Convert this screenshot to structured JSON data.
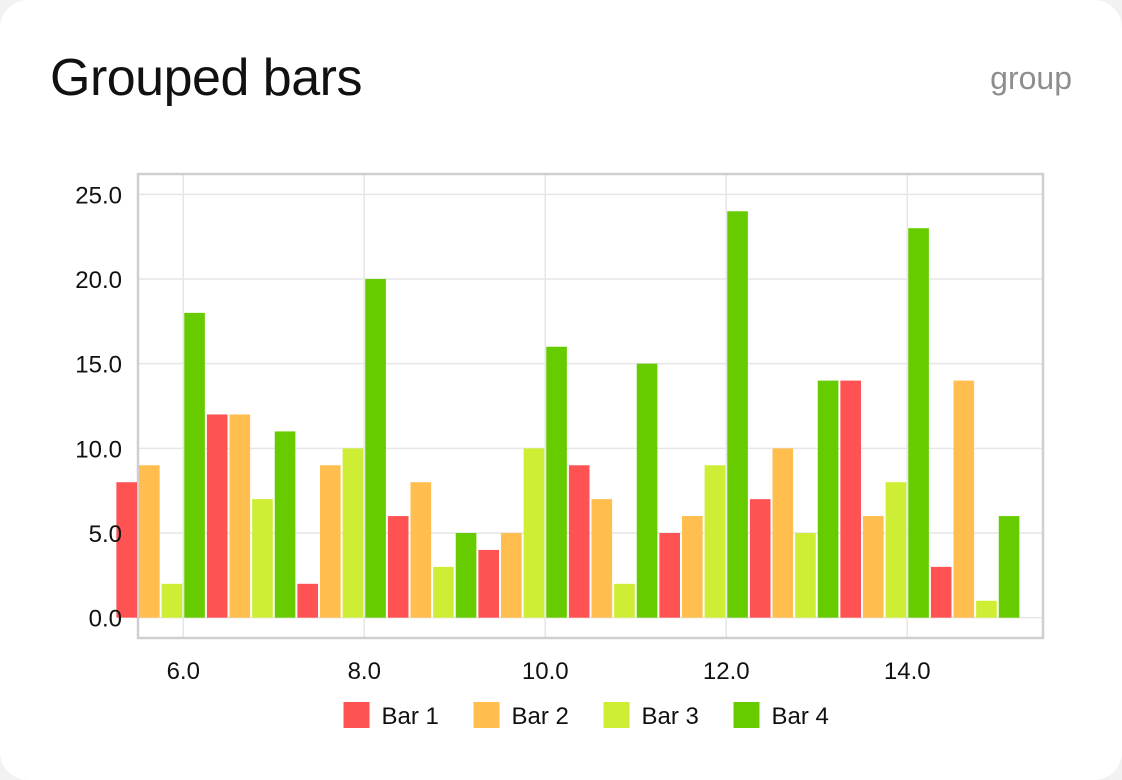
{
  "header": {
    "title": "Grouped bars",
    "tag": "group"
  },
  "chart_data": {
    "type": "bar",
    "mode": "grouped",
    "x": [
      5.75,
      6.75,
      7.75,
      8.75,
      9.75,
      10.75,
      11.75,
      12.75,
      13.75,
      14.75
    ],
    "series": [
      {
        "name": "Bar 1",
        "color": "#ff5252",
        "values": [
          8,
          12,
          2,
          6,
          4,
          9,
          5,
          7,
          14,
          3
        ]
      },
      {
        "name": "Bar 2",
        "color": "#ffbe4d",
        "values": [
          9,
          12,
          9,
          8,
          5,
          7,
          6,
          10,
          6,
          14
        ]
      },
      {
        "name": "Bar 3",
        "color": "#cdee34",
        "values": [
          2,
          7,
          10,
          3,
          10,
          2,
          9,
          5,
          8,
          1
        ]
      },
      {
        "name": "Bar 4",
        "color": "#66cc00",
        "values": [
          18,
          11,
          20,
          5,
          16,
          15,
          24,
          14,
          23,
          6
        ]
      }
    ],
    "xticks": [
      "6.0",
      "8.0",
      "10.0",
      "12.0",
      "14.0"
    ],
    "yticks": [
      "0.0",
      "5.0",
      "10.0",
      "15.0",
      "20.0",
      "25.0"
    ],
    "xlim": [
      5.5,
      15.5
    ],
    "ylim": [
      -1.2,
      26.2
    ],
    "grid": true,
    "legend_position": "bottom"
  }
}
